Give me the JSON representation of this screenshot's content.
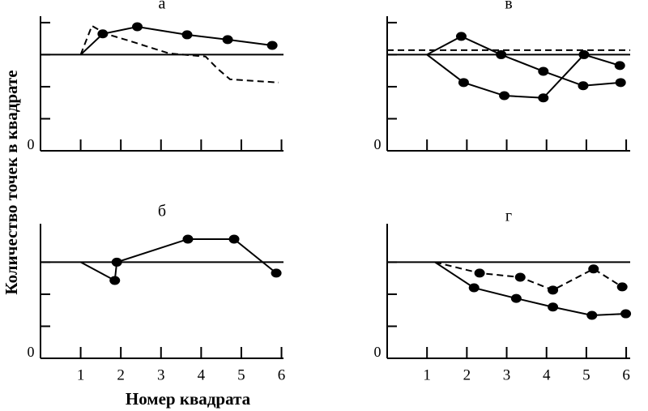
{
  "ylabel": "Количество точек в квадрате",
  "xlabel": "Номер квадрата",
  "chart_data": [
    {
      "type": "line",
      "title": "а",
      "xlim": [
        0,
        6.05
      ],
      "ylim": [
        0,
        4.2
      ],
      "xticks": [
        1,
        2,
        3,
        4,
        5,
        6
      ],
      "show_xtick_labels": false,
      "yticks": [
        0
      ],
      "yminor": [
        1,
        2,
        3,
        4
      ],
      "reference": [
        {
          "value": 3,
          "style": "solid"
        }
      ],
      "series": [
        {
          "color": "#000000",
          "style": "solid",
          "marker": true,
          "x": [
            1,
            1.55,
            2.41,
            3.65,
            4.66,
            5.77
          ],
          "values": [
            3,
            3.65,
            3.87,
            3.62,
            3.47,
            3.29
          ]
        },
        {
          "color": "#000000",
          "style": "dashed",
          "marker": false,
          "x": [
            1,
            1.28,
            1.63,
            2.19,
            3.2,
            4.11,
            4.41,
            4.72,
            5.93
          ],
          "values": [
            3,
            3.9,
            3.65,
            3.44,
            3.04,
            2.94,
            2.56,
            2.23,
            2.13
          ]
        }
      ]
    },
    {
      "type": "line",
      "title": "в",
      "xlim": [
        0,
        6.1
      ],
      "ylim": [
        0,
        4.2
      ],
      "xticks": [
        1,
        2,
        3,
        4,
        5,
        6
      ],
      "show_xtick_labels": false,
      "yticks": [
        0
      ],
      "yminor": [
        1,
        2,
        3,
        4
      ],
      "reference": [
        {
          "value": 3,
          "style": "solid"
        },
        {
          "value": 3.14,
          "style": "dashed"
        }
      ],
      "series": [
        {
          "color": "#000000",
          "style": "solid",
          "marker": true,
          "x": [
            1,
            1.86,
            2.86,
            3.92,
            4.92,
            5.86
          ],
          "values": [
            3,
            3.57,
            3,
            2.48,
            2.03,
            2.13
          ]
        },
        {
          "color": "#000000",
          "style": "solid",
          "marker": true,
          "x": [
            1,
            1.92,
            2.94,
            3.92,
            4.94,
            5.84
          ],
          "values": [
            3,
            2.13,
            1.72,
            1.65,
            3,
            2.66
          ]
        }
      ]
    },
    {
      "type": "line",
      "title": "б",
      "xlim": [
        0,
        6.05
      ],
      "ylim": [
        0,
        4.2
      ],
      "xticks": [
        1,
        2,
        3,
        4,
        5,
        6
      ],
      "show_xtick_labels": true,
      "yticks": [
        0
      ],
      "yminor": [
        1,
        2,
        3
      ],
      "reference": [
        {
          "value": 3,
          "style": "solid"
        }
      ],
      "series": [
        {
          "color": "#000000",
          "style": "solid",
          "marker": true,
          "x": [
            1,
            1.85,
            1.9,
            3.67,
            4.82,
            5.87
          ],
          "values": [
            3,
            2.43,
            3,
            3.72,
            3.72,
            2.66
          ]
        }
      ]
    },
    {
      "type": "line",
      "title": "г",
      "xlim": [
        0,
        6.1
      ],
      "ylim": [
        0,
        4.2
      ],
      "xticks": [
        1,
        2,
        3,
        4,
        5,
        6
      ],
      "show_xtick_labels": true,
      "yticks": [
        0
      ],
      "yminor": [
        1,
        2,
        3
      ],
      "reference": [
        {
          "value": 3,
          "style": "solid"
        }
      ],
      "series": [
        {
          "color": "#000000",
          "style": "dashed",
          "marker": true,
          "x": [
            1.2,
            2.32,
            3.34,
            4.16,
            5.18,
            5.9
          ],
          "values": [
            3,
            2.66,
            2.53,
            2.13,
            2.79,
            2.23
          ]
        },
        {
          "color": "#000000",
          "style": "solid",
          "marker": true,
          "x": [
            1.2,
            2.18,
            3.24,
            4.16,
            5.14,
            5.99
          ],
          "values": [
            3,
            2.2,
            1.87,
            1.6,
            1.34,
            1.39
          ]
        }
      ]
    }
  ]
}
